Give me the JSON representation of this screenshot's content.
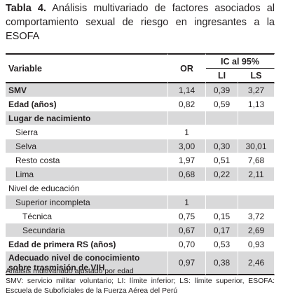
{
  "caption": {
    "label": "Tabla 4.",
    "text": "Análisis multivariado de factores asociados al comportamiento sexual de riesgo en ingresantes a la ESOFA"
  },
  "table": {
    "headers": {
      "variable": "Variable",
      "or": "OR",
      "ic": "IC al 95%",
      "li": "LI",
      "ls": "LS"
    },
    "rows": [
      [
        "SMV",
        "1,14",
        "0,39",
        "3,27"
      ],
      [
        "Edad (años)",
        "0,82",
        "0,59",
        "1,13"
      ],
      [
        "Lugar de nacimiento"
      ],
      [
        "Sierra",
        "1"
      ],
      [
        "Selva",
        "3,00",
        "0,30",
        "30,01"
      ],
      [
        "Resto costa",
        "1,97",
        "0,51",
        "7,68"
      ],
      [
        "Lima",
        "0,68",
        "0,22",
        "2,11"
      ],
      [
        "Nivel de educación"
      ],
      [
        "Superior incompleta",
        "1"
      ],
      [
        "Técnica",
        "0,75",
        "0,15",
        "3,72"
      ],
      [
        "Secundaria",
        "0,67",
        "0,17",
        "2,69"
      ],
      [
        "Edad de primera RS (años)",
        "0,70",
        "0,53",
        "0,93"
      ],
      [
        "Adecuado nivel de conocimiento sobre trasmisión de VIH",
        "0,97",
        "0,38",
        "2,46"
      ]
    ]
  },
  "notes": [
    "Análisis multivariado ajustado por edad",
    "SMV: servicio militar voluntario; LI: límite inferior; LS: límite superior, ESOFA: Escuela de Suboficiales de la Fuerza Aérea del Perú"
  ]
}
